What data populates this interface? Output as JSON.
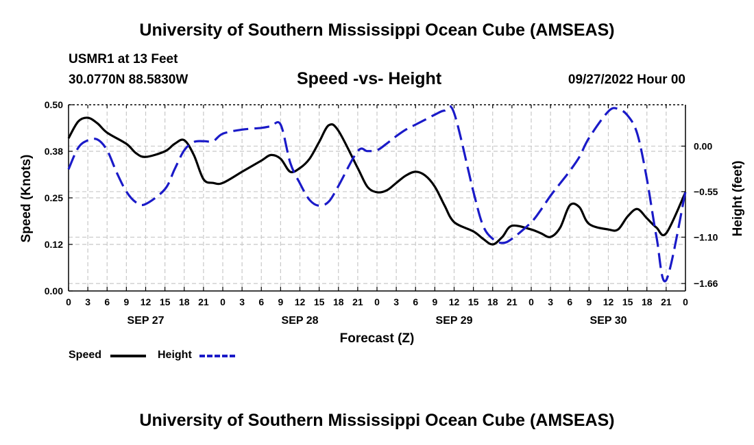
{
  "title": "University of Southern Mississippi Ocean Cube (AMSEAS)",
  "title_repeat": "University of Southern Mississippi Ocean Cube (AMSEAS)",
  "station": "USMR1 at 13 Feet",
  "coords": "30.0770N  88.5830W",
  "subtitle": "Speed -vs- Height",
  "datetime": "09/27/2022 Hour 00",
  "legend": {
    "speed": "Speed",
    "height": "Height"
  },
  "colors": {
    "speed": "#000000",
    "height": "#1a1ac8",
    "grid": "#c8c8c8"
  },
  "chart_data": {
    "type": "line",
    "title": "Speed -vs- Height",
    "xlabel": "Forecast (Z)",
    "ylabel": "Speed (Knots)",
    "y2label": "Height (feet)",
    "x_unit": "hours since 09/27/2022 00Z",
    "xlim": [
      0,
      96
    ],
    "ylim": [
      0,
      0.5
    ],
    "y2lim": [
      -1.75,
      0.5
    ],
    "y_ticks": [
      "0.00",
      "0.12",
      "0.25",
      "0.38",
      "0.50"
    ],
    "y_tick_values": [
      0,
      0.125,
      0.25,
      0.375,
      0.5
    ],
    "y2_ticks": [
      "0.00",
      "−0.55",
      "−1.10",
      "−1.66"
    ],
    "y2_tick_values": [
      0,
      -0.55,
      -1.1,
      -1.66
    ],
    "x_ticks": [
      "0",
      "3",
      "6",
      "9",
      "12",
      "15",
      "18",
      "21",
      "0",
      "3",
      "6",
      "9",
      "12",
      "15",
      "18",
      "21",
      "0",
      "3",
      "6",
      "9",
      "12",
      "15",
      "18",
      "21",
      "0",
      "3",
      "6",
      "9",
      "12",
      "15",
      "18",
      "21",
      "0"
    ],
    "day_labels": [
      {
        "hour": 12,
        "label": "SEP 27"
      },
      {
        "hour": 36,
        "label": "SEP 28"
      },
      {
        "hour": 60,
        "label": "SEP 29"
      },
      {
        "hour": 84,
        "label": "SEP 30"
      }
    ],
    "grid": true,
    "series": [
      {
        "name": "Speed",
        "axis": "left",
        "style": "solid",
        "x": [
          0,
          1.5,
          3,
          4.5,
          6,
          9,
          10.5,
          12,
          15,
          16.5,
          18,
          19.5,
          21,
          22.5,
          24,
          27,
          30,
          31.5,
          33,
          34.5,
          36,
          37.5,
          39,
          40.5,
          42,
          45,
          46.5,
          48,
          49.5,
          51,
          52.5,
          54,
          55.5,
          57,
          58.5,
          60,
          63,
          64.5,
          66,
          67.5,
          69,
          72,
          73.5,
          75,
          76.5,
          78,
          79.5,
          81,
          84,
          85.5,
          87,
          88.5,
          90,
          91.5,
          93,
          96
        ],
        "values": [
          0.41,
          0.455,
          0.465,
          0.45,
          0.425,
          0.395,
          0.37,
          0.36,
          0.375,
          0.395,
          0.405,
          0.365,
          0.3,
          0.29,
          0.29,
          0.32,
          0.35,
          0.365,
          0.355,
          0.32,
          0.33,
          0.355,
          0.4,
          0.445,
          0.43,
          0.33,
          0.28,
          0.265,
          0.27,
          0.29,
          0.31,
          0.32,
          0.31,
          0.28,
          0.23,
          0.185,
          0.16,
          0.14,
          0.125,
          0.145,
          0.175,
          0.165,
          0.155,
          0.145,
          0.17,
          0.23,
          0.225,
          0.18,
          0.165,
          0.165,
          0.2,
          0.22,
          0.195,
          0.17,
          0.155,
          0.265
        ]
      },
      {
        "name": "Height",
        "axis": "right",
        "style": "dashed",
        "x": [
          0,
          1.5,
          3,
          4.5,
          6,
          7.5,
          9,
          10.5,
          12,
          15,
          16.5,
          18,
          19.5,
          21,
          22.5,
          24,
          27,
          30,
          31.5,
          33,
          34.5,
          36,
          37.5,
          39,
          40.5,
          42,
          45,
          46.5,
          48,
          49.5,
          51,
          52.5,
          54,
          55.5,
          57,
          58.5,
          60,
          63,
          64.5,
          66,
          67.5,
          69,
          72,
          73.5,
          75,
          76.5,
          78,
          79.5,
          81,
          84,
          85.5,
          87,
          88.5,
          90,
          91.5,
          93,
          96
        ],
        "values": [
          -0.28,
          -0.02,
          0.07,
          0.08,
          -0.05,
          -0.32,
          -0.55,
          -0.68,
          -0.7,
          -0.52,
          -0.28,
          -0.05,
          0.05,
          0.06,
          0.06,
          0.15,
          0.2,
          0.22,
          0.24,
          0.26,
          -0.2,
          -0.45,
          -0.65,
          -0.72,
          -0.67,
          -0.48,
          -0.06,
          -0.06,
          -0.05,
          0.03,
          0.12,
          0.2,
          0.26,
          0.32,
          0.38,
          0.43,
          0.4,
          -0.55,
          -0.96,
          -1.12,
          -1.17,
          -1.12,
          -0.92,
          -0.77,
          -0.6,
          -0.45,
          -0.3,
          -0.13,
          0.1,
          0.42,
          0.45,
          0.37,
          0.15,
          -0.4,
          -1.1,
          -1.62,
          -0.55
        ]
      }
    ]
  }
}
